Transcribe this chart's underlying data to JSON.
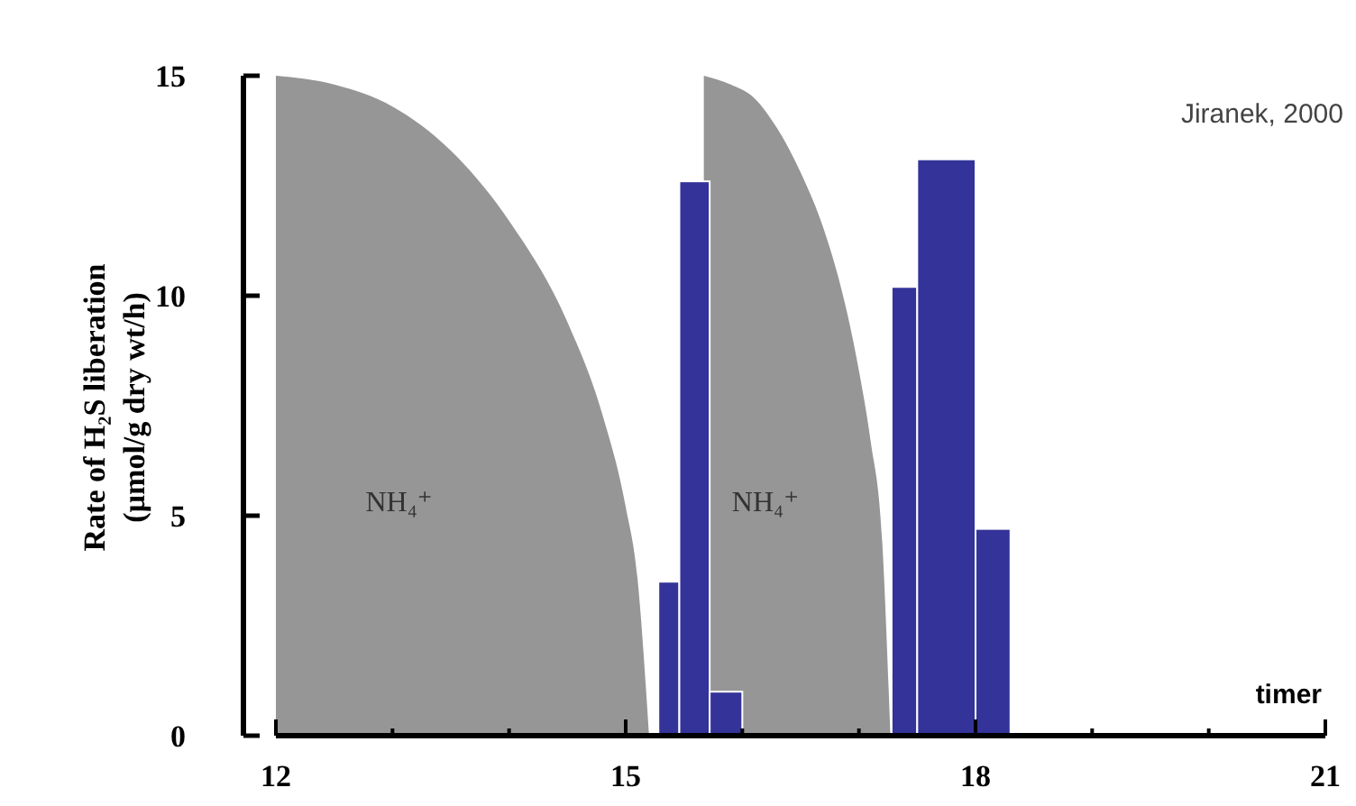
{
  "chart_data": {
    "type": "histogram",
    "xlabel": "timer",
    "ylabel": "Rate of H₂S liberation (µmol/g dry wt/h)",
    "annotations": [
      "Jiranek, 2000"
    ],
    "xlim": [
      12,
      21
    ],
    "ylim": [
      0,
      15
    ],
    "xticks": [
      12,
      {
        "value": 13,
        "label": null
      },
      {
        "value": 14,
        "label": null
      },
      15,
      {
        "value": 16,
        "label": null
      },
      {
        "value": 17,
        "label": null
      },
      18,
      {
        "value": 19,
        "label": null
      },
      {
        "value": 20,
        "label": null
      },
      21
    ],
    "yticks": [
      0,
      5,
      10,
      15
    ],
    "grid": false,
    "series": [
      {
        "type": "area",
        "name": "NH₄⁺",
        "color": "#969696",
        "x": [
          12,
          12.5,
          13,
          13.5,
          14,
          14.5,
          14.8,
          15.0,
          15.1,
          15.2
        ],
        "values": [
          15,
          14.8,
          14.3,
          13.3,
          11.7,
          9.4,
          7.3,
          5.2,
          3.6,
          0
        ]
      },
      {
        "type": "area",
        "name": "NH₄⁺",
        "color": "#969696",
        "x": [
          15.67,
          15.9,
          16.1,
          16.3,
          16.5,
          16.7,
          16.9,
          17.0,
          17.1,
          17.2,
          17.27
        ],
        "values": [
          15,
          14.8,
          14.5,
          13.8,
          12.8,
          11.5,
          9.6,
          8.3,
          6.7,
          4.4,
          0
        ]
      },
      {
        "color": "#333399",
        "bins": [
          15.28,
          15.46,
          15.72,
          16.0,
          17.28,
          17.5,
          18.0,
          18.3
        ],
        "values": [
          3.5,
          12.6,
          1.0,
          null,
          10.2,
          13.1,
          4.7
        ]
      }
    ]
  }
}
